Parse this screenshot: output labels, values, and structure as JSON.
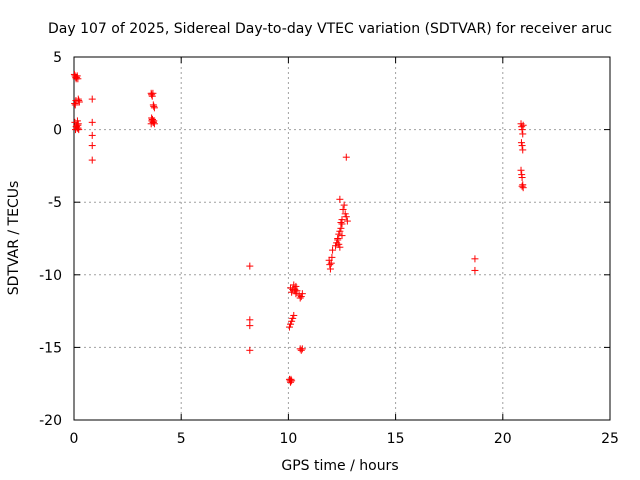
{
  "chart_data": {
    "type": "scatter",
    "title": "Day 107 of 2025, Sidereal Day-to-day VTEC variation (SDTVAR) for receiver aruc",
    "xlabel": "GPS time / hours",
    "ylabel": "SDTVAR / TECUs",
    "xlim": [
      0,
      25
    ],
    "ylim": [
      -20,
      5
    ],
    "xticks": [
      0,
      5,
      10,
      15,
      20,
      25
    ],
    "yticks": [
      -20,
      -15,
      -10,
      -5,
      0,
      5
    ],
    "xtick_labels": [
      "0",
      "5",
      "10",
      "15",
      "20",
      "25"
    ],
    "ytick_labels": [
      "-20",
      "-15",
      "-10",
      "-5",
      "0",
      "5"
    ],
    "grid": true,
    "marker": "+",
    "color": "#ff0000",
    "series": [
      {
        "name": "SDTVAR",
        "x": [
          0.02,
          0.05,
          0.08,
          0.1,
          0.12,
          0.15,
          0.18,
          0.2,
          0.22,
          0.25,
          0.03,
          0.06,
          0.09,
          0.12,
          0.15,
          0.18,
          0.2,
          0.04,
          0.07,
          0.1,
          0.13,
          0.16,
          0.19,
          0.22,
          0.85,
          0.85,
          0.85,
          0.85,
          0.85,
          3.6,
          3.62,
          3.65,
          3.68,
          3.7,
          3.72,
          3.75,
          3.62,
          3.65,
          3.68,
          3.7,
          3.6,
          3.63,
          3.66,
          3.69,
          3.72,
          3.75,
          8.2,
          8.2,
          8.2,
          8.2,
          10.05,
          10.08,
          10.1,
          10.12,
          10.15,
          10.05,
          10.1,
          10.15,
          10.2,
          10.25,
          10.3,
          10.35,
          10.4,
          10.1,
          10.15,
          10.2,
          10.25,
          10.3,
          10.35,
          10.5,
          10.55,
          10.6,
          10.65,
          10.55,
          10.6,
          10.65,
          11.9,
          11.93,
          11.96,
          12.0,
          12.03,
          12.06,
          12.2,
          12.25,
          12.3,
          12.35,
          12.4,
          12.45,
          12.5,
          12.3,
          12.35,
          12.4,
          12.45,
          12.5,
          12.55,
          12.6,
          12.65,
          12.7,
          12.75,
          12.4,
          12.5,
          12.7,
          18.7,
          18.7,
          20.85,
          20.88,
          20.9,
          20.93,
          20.95,
          20.87,
          20.9,
          20.93,
          20.85,
          20.88,
          20.9,
          20.93,
          20.95,
          20.9
        ],
        "y": [
          3.8,
          3.7,
          3.6,
          3.5,
          3.6,
          3.7,
          3.5,
          2.1,
          2.0,
          1.9,
          1.8,
          1.7,
          2.0,
          0.2,
          0.1,
          0.3,
          0.4,
          0.5,
          0.0,
          0.2,
          0.3,
          0.6,
          0.1,
          0.0,
          2.1,
          0.5,
          -0.4,
          -1.1,
          -2.1,
          2.5,
          2.4,
          2.3,
          2.5,
          1.7,
          1.6,
          1.5,
          0.8,
          0.7,
          0.6,
          0.5,
          0.4,
          0.6,
          0.7,
          0.5,
          0.6,
          0.4,
          -9.4,
          -13.1,
          -13.5,
          -15.2,
          -17.2,
          -17.3,
          -17.4,
          -17.2,
          -17.3,
          -13.6,
          -13.4,
          -13.2,
          -13.0,
          -12.8,
          -11.0,
          -10.8,
          -11.1,
          -10.9,
          -11.2,
          -11.0,
          -10.7,
          -11.1,
          -11.3,
          -11.4,
          -11.6,
          -11.5,
          -11.3,
          -15.1,
          -15.2,
          -15.1,
          -9.0,
          -9.3,
          -9.6,
          -9.2,
          -8.8,
          -8.3,
          -8.0,
          -7.8,
          -7.5,
          -7.2,
          -7.0,
          -6.8,
          -6.5,
          -7.6,
          -7.9,
          -8.1,
          -6.4,
          -6.2,
          -5.5,
          -5.2,
          -5.8,
          -6.0,
          -6.3,
          -4.8,
          -7.3,
          -1.9,
          -8.9,
          -9.7,
          0.4,
          0.2,
          0.0,
          -0.3,
          0.3,
          -0.9,
          -1.1,
          -1.4,
          -2.8,
          -3.1,
          -3.3,
          -3.8,
          -4.0,
          -3.9
        ]
      }
    ]
  }
}
